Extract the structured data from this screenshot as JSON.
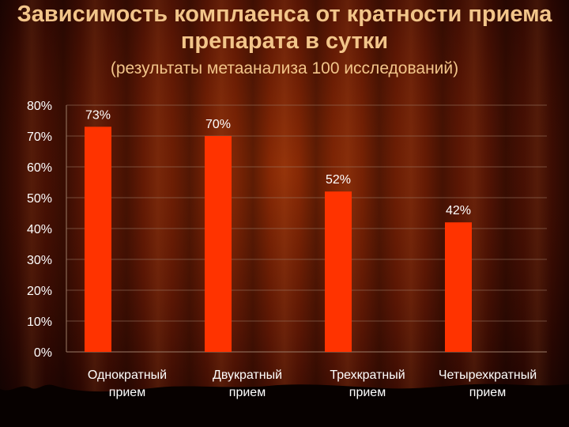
{
  "header": {
    "title_line1": "Зависимость комплаенса от кратности приема",
    "title_line2": "препарата в сутки",
    "subtitle": "(результаты метаанализа 100 исследований)"
  },
  "colors": {
    "bar": "#ff3300",
    "text": "#ffffff",
    "title": "#f2c58a",
    "grid": "#9a7a66"
  },
  "chart_data": {
    "type": "bar",
    "categories": [
      [
        "Однократный",
        "прием"
      ],
      [
        "Двукратный",
        "прием"
      ],
      [
        "Трехкратный",
        "прием"
      ],
      [
        "Четырехкратный",
        "прием"
      ]
    ],
    "values": [
      73,
      70,
      52,
      42
    ],
    "data_labels": [
      "73%",
      "70%",
      "52%",
      "42%"
    ],
    "y_ticks": [
      "0%",
      "10%",
      "20%",
      "30%",
      "40%",
      "50%",
      "60%",
      "70%",
      "80%"
    ],
    "ylim": [
      0,
      80
    ],
    "grid": true,
    "legend": "none"
  }
}
